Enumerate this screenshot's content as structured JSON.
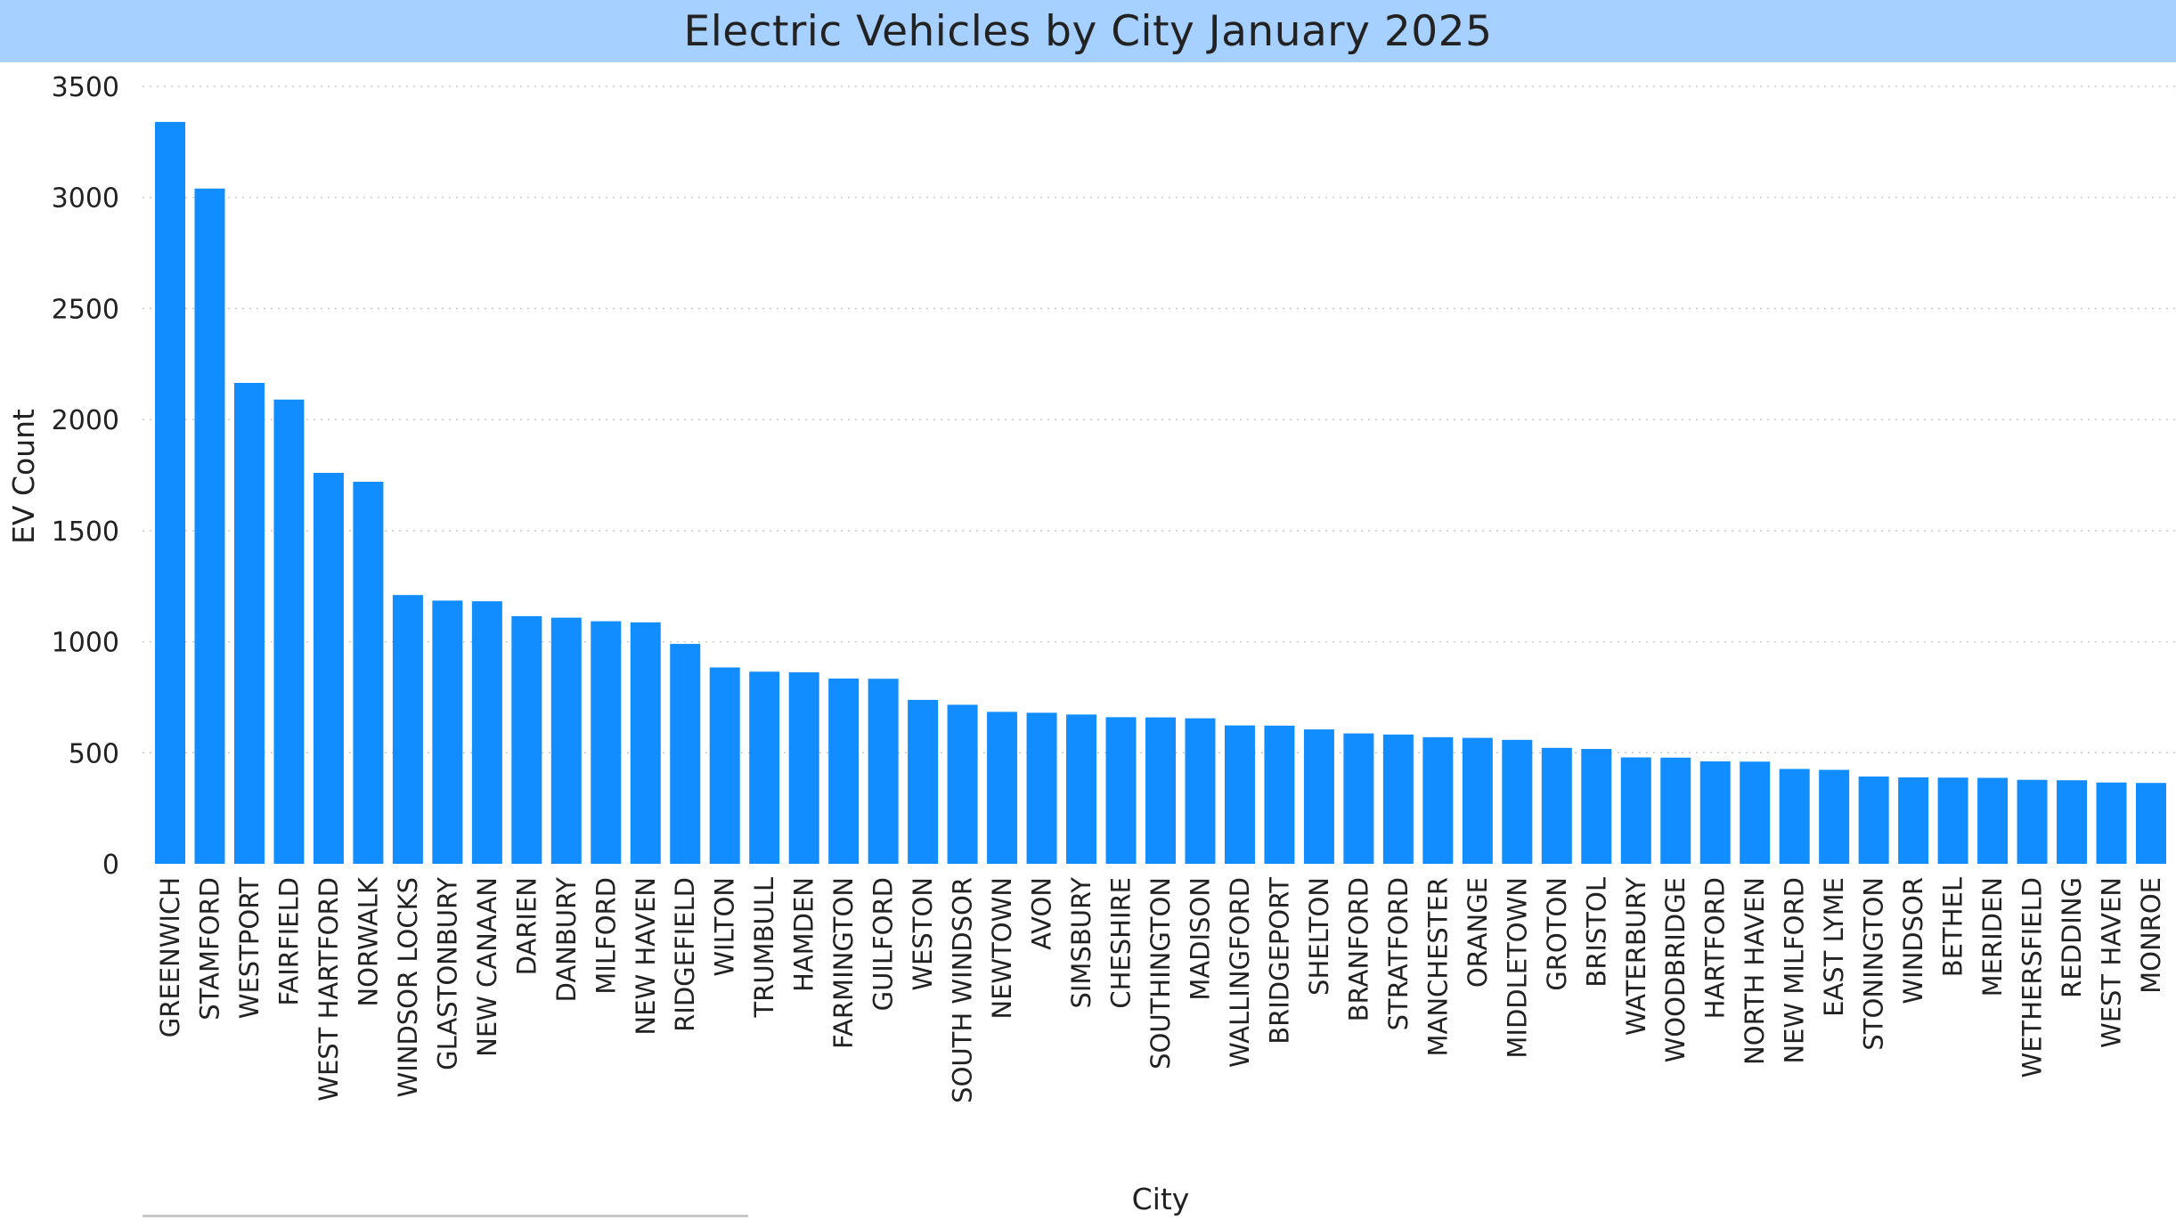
{
  "title": "Electric Vehicles by City January 2025",
  "colors": {
    "title_bg": "#a6d0ff",
    "bar": "#118dff",
    "grid": "#c8c8c8",
    "text": "#222222"
  },
  "chart_data": {
    "type": "bar",
    "title": "Electric Vehicles by City January 2025",
    "xlabel": "City",
    "ylabel": "EV Count",
    "ylim": [
      0,
      3500
    ],
    "yticks": [
      0,
      500,
      1000,
      1500,
      2000,
      2500,
      3000,
      3500
    ],
    "grid": true,
    "categories": [
      "GREENWICH",
      "STAMFORD",
      "WESTPORT",
      "FAIRFIELD",
      "WEST HARTFORD",
      "NORWALK",
      "WINDSOR LOCKS",
      "GLASTONBURY",
      "NEW CANAAN",
      "DARIEN",
      "DANBURY",
      "MILFORD",
      "NEW HAVEN",
      "RIDGEFIELD",
      "WILTON",
      "TRUMBULL",
      "HAMDEN",
      "FARMINGTON",
      "GUILFORD",
      "WESTON",
      "SOUTH WINDSOR",
      "NEWTOWN",
      "AVON",
      "SIMSBURY",
      "CHESHIRE",
      "SOUTHINGTON",
      "MADISON",
      "WALLINGFORD",
      "BRIDGEPORT",
      "SHELTON",
      "BRANFORD",
      "STRATFORD",
      "MANCHESTER",
      "ORANGE",
      "MIDDLETOWN",
      "GROTON",
      "BRISTOL",
      "WATERBURY",
      "WOODBRIDGE",
      "HARTFORD",
      "NORTH HAVEN",
      "NEW MILFORD",
      "EAST LYME",
      "STONINGTON",
      "WINDSOR",
      "BETHEL",
      "MERIDEN",
      "WETHERSFIELD",
      "REDDING",
      "WEST HAVEN",
      "MONROE"
    ],
    "values": [
      3340,
      3040,
      2165,
      2090,
      1760,
      1720,
      1210,
      1185,
      1182,
      1115,
      1108,
      1092,
      1087,
      990,
      884,
      865,
      862,
      834,
      833,
      738,
      716,
      684,
      680,
      672,
      660,
      659,
      655,
      623,
      622,
      605,
      587,
      582,
      570,
      567,
      558,
      522,
      517,
      479,
      478,
      461,
      460,
      427,
      423,
      393,
      389,
      388,
      387,
      378,
      376,
      366,
      364
    ]
  }
}
